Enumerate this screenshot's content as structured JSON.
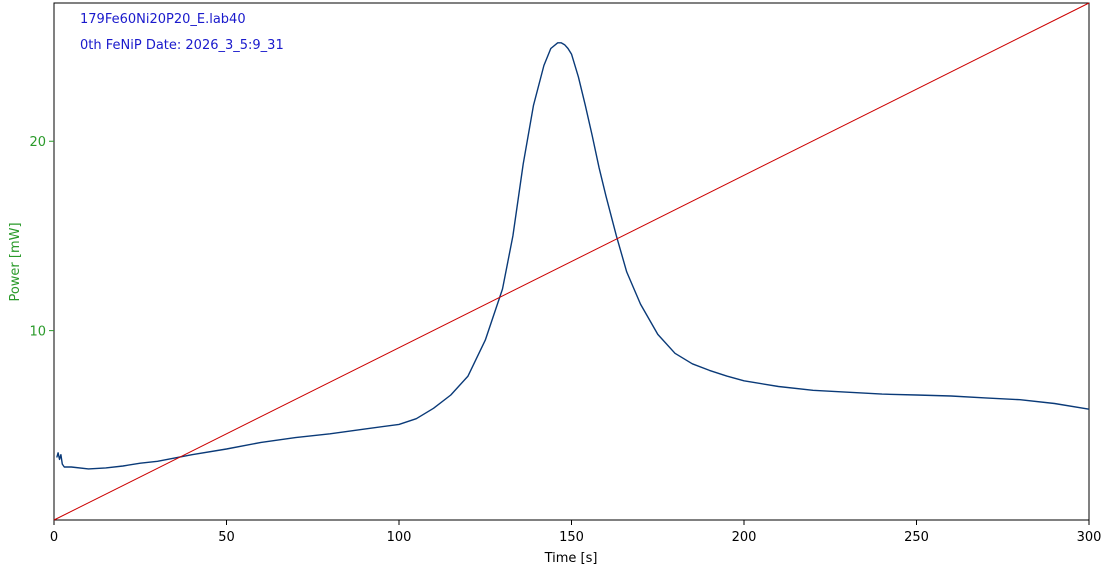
{
  "chart_data": {
    "type": "line",
    "annotations": [
      "179Fe60Ni20P20_E.lab40",
      "0th FeNiP Date: 2026_3_5:9_31"
    ],
    "xlabel": "Time [s]",
    "ylabel": "Power  [mW]",
    "xlim": [
      0,
      300
    ],
    "ylim": [
      0,
      27.3
    ],
    "xticks": [
      0,
      50,
      100,
      150,
      200,
      250,
      300
    ],
    "yticks": [
      10,
      20
    ],
    "grid": false,
    "series": [
      {
        "color": "#0a3a78",
        "x": [
          0.8,
          1.2,
          1.6,
          2.0,
          2.4,
          3,
          5,
          10,
          15,
          20,
          25,
          30,
          40,
          50,
          60,
          70,
          80,
          90,
          100,
          105,
          110,
          115,
          120,
          125,
          130,
          133,
          136,
          139,
          142,
          144,
          146,
          147,
          148,
          149,
          150,
          152,
          154,
          156,
          158,
          160,
          163,
          166,
          170,
          175,
          180,
          185,
          190,
          195,
          200,
          210,
          220,
          230,
          240,
          250,
          260,
          270,
          280,
          290,
          300
        ],
        "y": [
          3.3,
          3.55,
          3.2,
          3.45,
          2.95,
          2.8,
          2.8,
          2.7,
          2.75,
          2.85,
          3.0,
          3.1,
          3.45,
          3.75,
          4.1,
          4.35,
          4.55,
          4.8,
          5.05,
          5.35,
          5.9,
          6.6,
          7.6,
          9.5,
          12.2,
          15.0,
          18.8,
          21.9,
          24.0,
          24.9,
          25.2,
          25.2,
          25.1,
          24.9,
          24.6,
          23.4,
          21.9,
          20.3,
          18.6,
          17.1,
          15.0,
          13.1,
          11.4,
          9.8,
          8.8,
          8.25,
          7.9,
          7.6,
          7.35,
          7.05,
          6.85,
          6.75,
          6.65,
          6.6,
          6.55,
          6.45,
          6.35,
          6.15,
          5.85
        ]
      },
      {
        "color": "#cc0000",
        "x": [
          0,
          300
        ],
        "y": [
          0,
          27.3
        ]
      }
    ]
  }
}
